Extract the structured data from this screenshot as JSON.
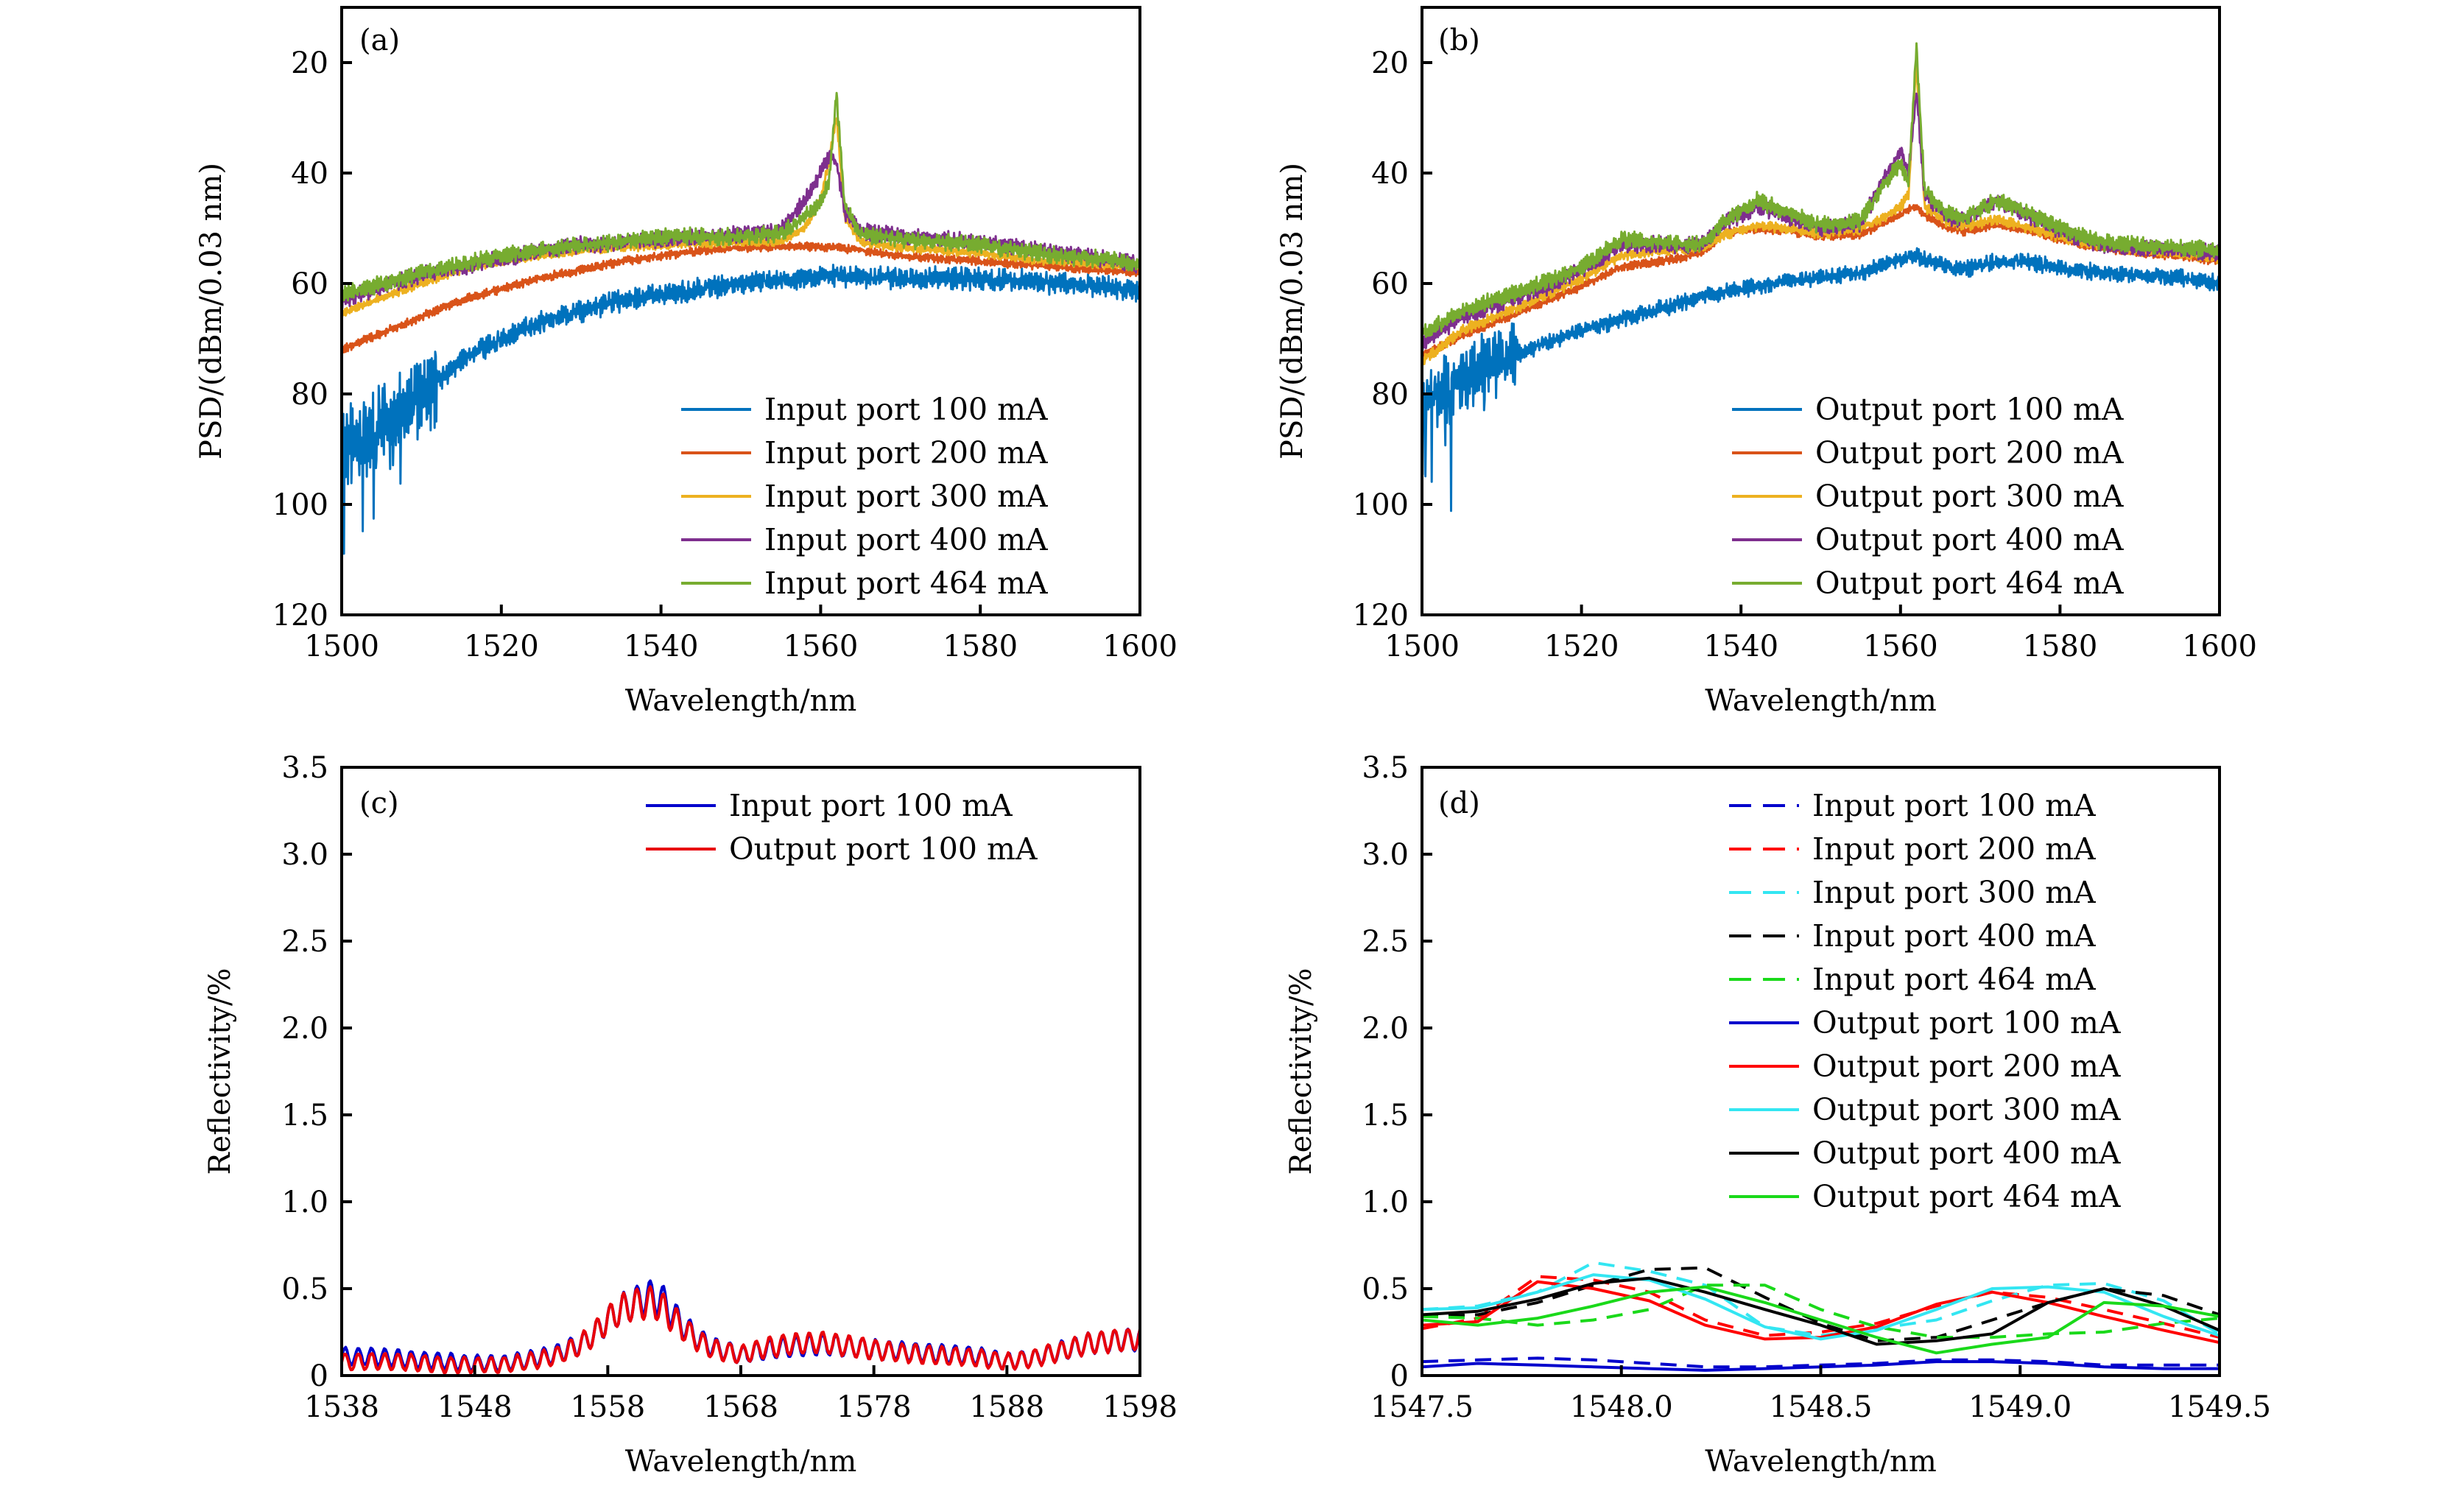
{
  "chart_data": [
    {
      "panel": "(a)",
      "type": "line",
      "xlabel": "Wavelength/nm",
      "ylabel": "PSD/(dBm/0.03 nm)",
      "xlim": [
        1500,
        1600
      ],
      "ylim": [
        10,
        120
      ],
      "y_inverted": true,
      "xticks": [
        1500,
        1520,
        1540,
        1560,
        1580,
        1600
      ],
      "yticks": [
        20,
        40,
        60,
        80,
        100,
        120
      ],
      "grid": false,
      "legend_position": "bottom-right",
      "x": [
        1500,
        1505,
        1510,
        1515,
        1520,
        1525,
        1530,
        1535,
        1540,
        1545,
        1550,
        1555,
        1558,
        1560,
        1561,
        1562,
        1563,
        1565,
        1570,
        1575,
        1580,
        1585,
        1590,
        1595,
        1600
      ],
      "series": [
        {
          "name": "Input port 100 mA",
          "color": "#0072BD",
          "noise": 2.0,
          "values": [
            90,
            86,
            80,
            74,
            70,
            67,
            65,
            63,
            62,
            61,
            60,
            59.5,
            59,
            58.8,
            58.6,
            58.5,
            58.7,
            59,
            59,
            59,
            59.2,
            59.5,
            60,
            60.5,
            61.5
          ]
        },
        {
          "name": "Input port 200 mA",
          "color": "#D95319",
          "noise": 0.8,
          "values": [
            72,
            69,
            66,
            63,
            61,
            59,
            57.5,
            56,
            55,
            54,
            53.5,
            53.3,
            53.2,
            53.5,
            53.4,
            53.3,
            53.6,
            54,
            55,
            55.5,
            56,
            56.5,
            57,
            57.5,
            58
          ]
        },
        {
          "name": "Input port 300 mA",
          "color": "#EDB120",
          "noise": 0.8,
          "values": [
            65.5,
            62.5,
            60,
            57.5,
            56,
            55,
            54,
            53.5,
            53,
            52.8,
            52.5,
            52.3,
            50,
            45,
            38,
            30,
            48,
            52.5,
            53.5,
            54,
            54.5,
            55.5,
            56,
            56.5,
            57
          ]
        },
        {
          "name": "Input port 400 mA",
          "color": "#7E2F8E",
          "noise": 1.5,
          "values": [
            63,
            60.5,
            58.5,
            57,
            55.5,
            54,
            53,
            52.5,
            52,
            51.5,
            51,
            50.5,
            45,
            40,
            37,
            38,
            47,
            50.5,
            51.5,
            52,
            52.5,
            53.5,
            54.5,
            55.5,
            56.5
          ]
        },
        {
          "name": "Input port 464 mA",
          "color": "#77AC30",
          "noise": 1.5,
          "values": [
            62,
            60,
            58,
            56.5,
            55,
            54,
            53,
            52.5,
            51.5,
            51.5,
            51.5,
            51,
            48,
            45,
            42,
            26,
            46,
            51,
            52,
            52.5,
            53,
            54,
            55,
            55.5,
            56.5
          ]
        }
      ]
    },
    {
      "panel": "(b)",
      "type": "line",
      "xlabel": "Wavelength/nm",
      "ylabel": "PSD/(dBm/0.03 nm)",
      "xlim": [
        1500,
        1600
      ],
      "ylim": [
        10,
        120
      ],
      "y_inverted": true,
      "xticks": [
        1500,
        1520,
        1540,
        1560,
        1580,
        1600
      ],
      "yticks": [
        20,
        40,
        60,
        80,
        100,
        120
      ],
      "grid": false,
      "legend_position": "bottom-right",
      "x": [
        1500,
        1505,
        1510,
        1515,
        1520,
        1525,
        1530,
        1535,
        1538,
        1542,
        1546,
        1550,
        1555,
        1558,
        1560,
        1561,
        1562,
        1563,
        1566,
        1568,
        1572,
        1575,
        1580,
        1585,
        1590,
        1595,
        1600
      ],
      "series": [
        {
          "name": "Output port 100 mA",
          "color": "#0072BD",
          "noise": 1.5,
          "values": [
            82,
            77,
            74,
            71,
            68.5,
            66.5,
            64.5,
            62.5,
            61.5,
            60.5,
            59.5,
            59,
            58,
            56.5,
            55.5,
            55,
            55,
            55.5,
            57,
            57.5,
            56,
            56,
            57,
            58,
            58.5,
            59,
            60
          ]
        },
        {
          "name": "Output port 200 mA",
          "color": "#D95319",
          "noise": 0.8,
          "values": [
            73,
            69.5,
            66.5,
            63.5,
            60.5,
            57,
            56,
            54.5,
            51,
            50,
            50.5,
            51.5,
            51,
            49,
            47.5,
            46.5,
            46,
            47.5,
            50,
            50.5,
            49.5,
            50,
            52,
            53.5,
            54.5,
            55,
            56
          ]
        },
        {
          "name": "Output port 300 mA",
          "color": "#EDB120",
          "noise": 1.0,
          "values": [
            74,
            68.5,
            65.5,
            62.5,
            59,
            55,
            54,
            53.5,
            51,
            49.5,
            50,
            51,
            50,
            48,
            46,
            44,
            20,
            46,
            49,
            49.5,
            48.5,
            49.5,
            51.5,
            53,
            54,
            54.5,
            55.5
          ]
        },
        {
          "name": "Output port 400 mA",
          "color": "#7E2F8E",
          "noise": 1.5,
          "values": [
            71,
            66,
            63.5,
            61,
            57.5,
            53,
            53,
            53,
            49,
            46,
            48,
            50,
            49,
            41,
            36,
            40,
            25,
            44,
            48,
            48.5,
            45,
            47,
            50.5,
            53,
            53.5,
            54,
            54.5
          ]
        },
        {
          "name": "Output port 464 mA",
          "color": "#77AC30",
          "noise": 1.5,
          "values": [
            69,
            65,
            62.5,
            60,
            57,
            52,
            52.5,
            53,
            48.5,
            45,
            47,
            49.5,
            48.5,
            42,
            38,
            42,
            17,
            43,
            47.5,
            48,
            45,
            46.5,
            50,
            52.5,
            53,
            53.5,
            54
          ]
        }
      ]
    },
    {
      "panel": "(c)",
      "type": "line",
      "xlabel": "Wavelength/nm",
      "ylabel": "Reflectivity/%",
      "xlim": [
        1538,
        1598
      ],
      "ylim": [
        0,
        3.5
      ],
      "xticks": [
        1538,
        1548,
        1558,
        1568,
        1578,
        1588,
        1598
      ],
      "yticks": [
        0,
        0.5,
        1.0,
        1.5,
        2.0,
        2.5,
        3.0,
        3.5
      ],
      "ytick_labels": [
        "0",
        "0.5",
        "1.0",
        "1.5",
        "2.0",
        "2.5",
        "3.0",
        "3.5"
      ],
      "grid": false,
      "legend_position": "top-right",
      "x": [
        1538,
        1540,
        1542,
        1544,
        1546,
        1548,
        1550,
        1552,
        1554,
        1556,
        1557,
        1558,
        1559,
        1560,
        1561,
        1562,
        1563,
        1564,
        1565,
        1566,
        1568,
        1570,
        1572,
        1574,
        1576,
        1578,
        1580,
        1582,
        1584,
        1586,
        1588,
        1590,
        1592,
        1594,
        1596,
        1598
      ],
      "series": [
        {
          "name": "Input port 100 mA",
          "color": "#0000CC",
          "ripple": 0.06,
          "values": [
            0.11,
            0.11,
            0.1,
            0.09,
            0.08,
            0.07,
            0.07,
            0.09,
            0.12,
            0.18,
            0.24,
            0.32,
            0.38,
            0.42,
            0.45,
            0.44,
            0.34,
            0.26,
            0.2,
            0.16,
            0.12,
            0.15,
            0.17,
            0.18,
            0.17,
            0.15,
            0.14,
            0.13,
            0.12,
            0.11,
            0.08,
            0.1,
            0.14,
            0.18,
            0.2,
            0.21
          ]
        },
        {
          "name": "Output port 100 mA",
          "color": "#E8000B",
          "ripple": 0.06,
          "values": [
            0.08,
            0.08,
            0.08,
            0.07,
            0.06,
            0.06,
            0.06,
            0.08,
            0.11,
            0.18,
            0.24,
            0.32,
            0.38,
            0.41,
            0.42,
            0.4,
            0.32,
            0.25,
            0.19,
            0.15,
            0.12,
            0.16,
            0.18,
            0.19,
            0.17,
            0.15,
            0.13,
            0.12,
            0.11,
            0.1,
            0.08,
            0.1,
            0.14,
            0.18,
            0.2,
            0.21
          ]
        }
      ]
    },
    {
      "panel": "(d)",
      "type": "line",
      "xlabel": "Wavelength/nm",
      "ylabel": "Reflectivity/%",
      "xlim": [
        1547.5,
        1549.5
      ],
      "ylim": [
        0,
        3.5
      ],
      "xticks": [
        1547.5,
        1548.0,
        1548.5,
        1549.0,
        1549.5
      ],
      "xtick_labels": [
        "1547.5",
        "1548.0",
        "1548.5",
        "1549.0",
        "1549.5"
      ],
      "yticks": [
        0,
        0.5,
        1.0,
        1.5,
        2.0,
        2.5,
        3.0,
        3.5
      ],
      "ytick_labels": [
        "0",
        "0.5",
        "1.0",
        "1.5",
        "2.0",
        "2.5",
        "3.0",
        "3.5"
      ],
      "grid": false,
      "legend_position": "top-right",
      "x": [
        1547.5,
        1547.64,
        1547.79,
        1547.93,
        1548.07,
        1548.21,
        1548.36,
        1548.5,
        1548.64,
        1548.79,
        1548.93,
        1549.07,
        1549.21,
        1549.36,
        1549.5
      ],
      "series": [
        {
          "name": "Input port 100 mA",
          "color": "#0000CC",
          "dash": true,
          "values": [
            0.08,
            0.09,
            0.1,
            0.09,
            0.07,
            0.05,
            0.05,
            0.06,
            0.07,
            0.09,
            0.09,
            0.08,
            0.06,
            0.06,
            0.06
          ]
        },
        {
          "name": "Input port 200 mA",
          "color": "#FF0000",
          "dash": true,
          "values": [
            0.27,
            0.33,
            0.57,
            0.55,
            0.48,
            0.32,
            0.23,
            0.25,
            0.3,
            0.4,
            0.48,
            0.45,
            0.38,
            0.3,
            0.22
          ]
        },
        {
          "name": "Input port 300 mA",
          "color": "#33E6F2",
          "dash": true,
          "values": [
            0.38,
            0.4,
            0.48,
            0.65,
            0.6,
            0.52,
            0.28,
            0.23,
            0.27,
            0.32,
            0.43,
            0.52,
            0.53,
            0.43,
            0.24
          ]
        },
        {
          "name": "Input port 400 mA",
          "color": "#000000",
          "dash": true,
          "values": [
            0.34,
            0.35,
            0.42,
            0.52,
            0.61,
            0.62,
            0.45,
            0.3,
            0.2,
            0.22,
            0.32,
            0.42,
            0.5,
            0.46,
            0.35
          ]
        },
        {
          "name": "Input port 464 mA",
          "color": "#1AD91A",
          "dash": true,
          "values": [
            0.34,
            0.33,
            0.29,
            0.32,
            0.38,
            0.52,
            0.52,
            0.38,
            0.28,
            0.22,
            0.22,
            0.24,
            0.25,
            0.3,
            0.33
          ]
        },
        {
          "name": "Output port 100 mA",
          "color": "#0000CC",
          "dash": false,
          "values": [
            0.05,
            0.07,
            0.06,
            0.05,
            0.04,
            0.03,
            0.04,
            0.05,
            0.06,
            0.08,
            0.08,
            0.07,
            0.05,
            0.04,
            0.04
          ]
        },
        {
          "name": "Output port 200 mA",
          "color": "#FF0000",
          "dash": false,
          "values": [
            0.29,
            0.31,
            0.54,
            0.5,
            0.43,
            0.29,
            0.21,
            0.22,
            0.28,
            0.41,
            0.48,
            0.42,
            0.34,
            0.26,
            0.19
          ]
        },
        {
          "name": "Output port 300 mA",
          "color": "#33E6F2",
          "dash": false,
          "values": [
            0.38,
            0.39,
            0.48,
            0.58,
            0.55,
            0.44,
            0.28,
            0.21,
            0.26,
            0.38,
            0.5,
            0.51,
            0.48,
            0.34,
            0.23
          ]
        },
        {
          "name": "Output port 400 mA",
          "color": "#000000",
          "dash": false,
          "values": [
            0.35,
            0.37,
            0.44,
            0.53,
            0.56,
            0.48,
            0.38,
            0.29,
            0.18,
            0.2,
            0.24,
            0.42,
            0.5,
            0.4,
            0.26
          ]
        },
        {
          "name": "Output port 464 mA",
          "color": "#1AD91A",
          "dash": false,
          "values": [
            0.32,
            0.29,
            0.33,
            0.4,
            0.48,
            0.51,
            0.42,
            0.32,
            0.22,
            0.13,
            0.18,
            0.22,
            0.42,
            0.4,
            0.34
          ]
        }
      ]
    }
  ]
}
